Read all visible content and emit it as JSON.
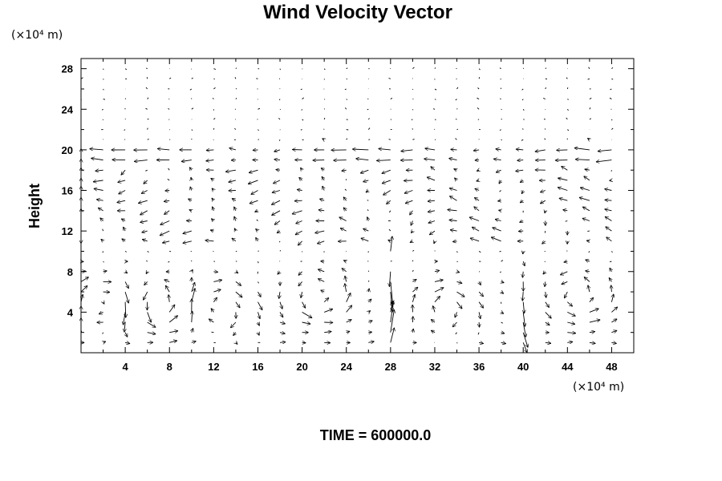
{
  "chart_data": {
    "type": "quiver",
    "title": "Wind Velocity Vector",
    "ylabel": "Height",
    "x_unit": "(×10⁴ m)",
    "y_unit": "(×10⁴ m)",
    "xlim": [
      0,
      50
    ],
    "ylim": [
      0,
      29
    ],
    "x_ticks": [
      "4",
      "8",
      "12",
      "16",
      "20",
      "24",
      "28",
      "32",
      "36",
      "40",
      "44",
      "48"
    ],
    "y_ticks": [
      "4",
      "8",
      "12",
      "16",
      "20",
      "24",
      "28"
    ],
    "grid": false,
    "footer": "TIME = 600000.0",
    "field": {
      "x_start": 0,
      "x_step": 2,
      "x_count": 25,
      "y_start": 1,
      "y_step": 1,
      "y_count": 28,
      "vortex_layer_top": 10,
      "upper_layer_bottom": 19,
      "upper_layer_top": 20,
      "model_top": 28,
      "description_in_units": "low-level circulating cells below y=10, strong horizontal flow near y=19-20, nearly calm above y=21"
    }
  }
}
